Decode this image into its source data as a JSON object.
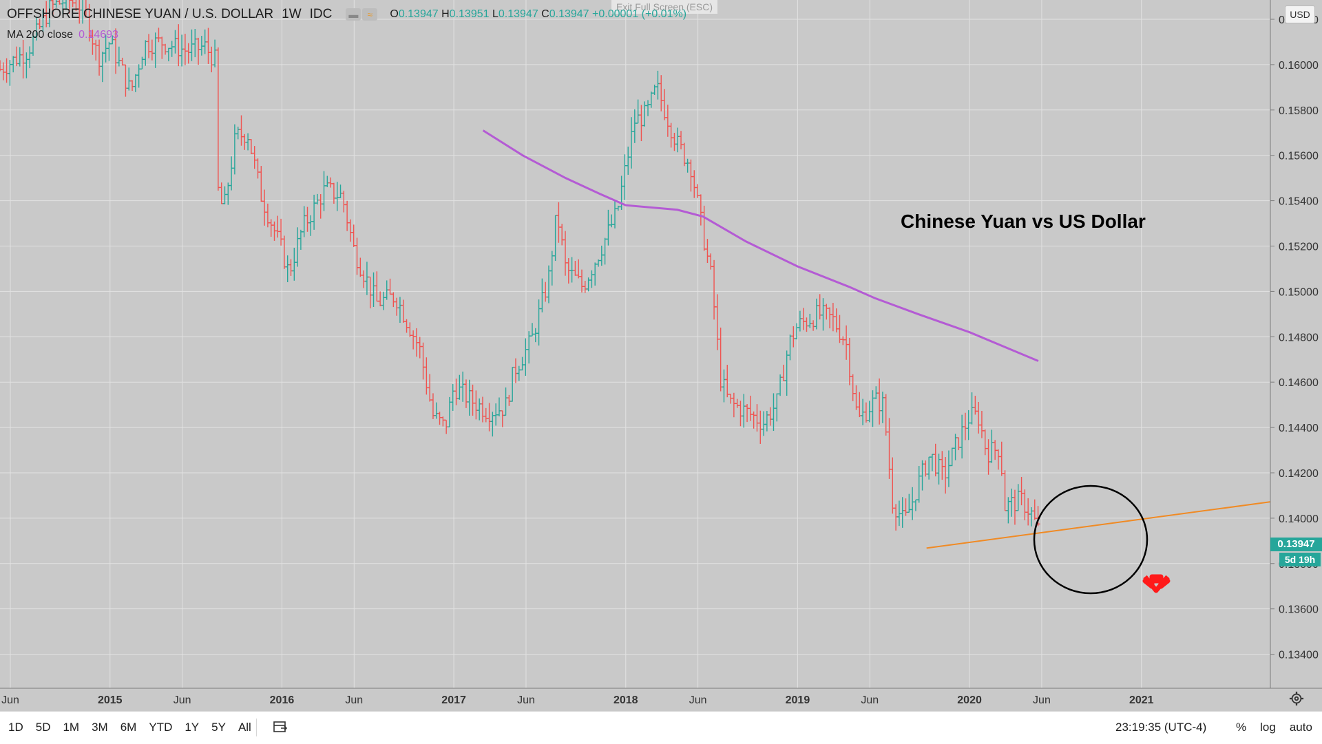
{
  "header": {
    "symbol": "OFFSHORE CHINESE YUAN / U.S. DOLLAR",
    "interval": "1W",
    "source": "IDC",
    "ohlc": {
      "o_label": "O",
      "o": "0.13947",
      "h_label": "H",
      "h": "0.13951",
      "l_label": "L",
      "l": "0.13947",
      "c_label": "C",
      "c": "0.13947",
      "change": "+0.00001 (+0.01%)"
    },
    "ma_label": "MA 200 close",
    "ma_value": "0.14693",
    "exit_fullscreen": "Exit Full Screen (ESC)",
    "currency": "USD"
  },
  "annotation_title": "Chinese Yuan vs US Dollar",
  "price_badge": "0.13947",
  "time_badge": "5d 19h",
  "toolbar": {
    "ranges": [
      "1D",
      "5D",
      "1M",
      "3M",
      "6M",
      "YTD",
      "1Y",
      "5Y",
      "All"
    ],
    "clock": "23:19:35 (UTC-4)",
    "percent": "%",
    "log": "log",
    "auto": "auto"
  },
  "colors": {
    "up": "#26a69a",
    "down": "#ef5350",
    "ma": "#b45bd4",
    "trend": "#f08a24",
    "arrow": "#ff1a1a",
    "grid": "#e2e2e2"
  },
  "chart_data": {
    "type": "line",
    "title": "",
    "xlabel": "",
    "ylabel": "",
    "x_ticks": [
      "Jun",
      "2015",
      "Jun",
      "2016",
      "Jun",
      "2017",
      "Jun",
      "2018",
      "Jun",
      "2019",
      "Jun",
      "2020",
      "Jun",
      "2021"
    ],
    "x_tick_dates": [
      2014.42,
      2015.0,
      2015.42,
      2016.0,
      2016.42,
      2017.0,
      2017.42,
      2018.0,
      2018.42,
      2019.0,
      2019.42,
      2020.0,
      2020.42,
      2021.0
    ],
    "xlim": [
      2014.36,
      2021.75
    ],
    "y_ticks": [
      "0.13400",
      "0.13600",
      "0.13800",
      "0.14000",
      "0.14200",
      "0.14400",
      "0.14600",
      "0.14800",
      "0.15000",
      "0.15200",
      "0.15400",
      "0.15600",
      "0.15800",
      "0.16000",
      "0.16200"
    ],
    "ylim": [
      0.1325,
      0.16285
    ],
    "grid": true,
    "series": [
      {
        "type": "ohlc",
        "x": [
          2014.36,
          2014.52,
          2014.65,
          2014.75,
          2014.85,
          2014.93,
          2015.0,
          2015.12,
          2015.2,
          2015.3,
          2015.45,
          2015.55,
          2015.61,
          2015.62,
          2015.66,
          2015.73,
          2015.8,
          2015.88,
          2016.0,
          2016.04,
          2016.12,
          2016.25,
          2016.35,
          2016.42,
          2016.55,
          2016.66,
          2016.8,
          2016.88,
          2016.95,
          2017.0,
          2017.1,
          2017.2,
          2017.3,
          2017.35,
          2017.45,
          2017.55,
          2017.6,
          2017.65,
          2017.75,
          2017.85,
          2017.95,
          2018.0,
          2018.05,
          2018.12,
          2018.18,
          2018.25,
          2018.3,
          2018.38,
          2018.45,
          2018.5,
          2018.55,
          2018.6,
          2018.7,
          2018.8,
          2018.88,
          2018.95,
          2019.0,
          2019.12,
          2019.2,
          2019.28,
          2019.35,
          2019.45,
          2019.5,
          2019.55,
          2019.62,
          2019.67,
          2019.7,
          2019.77,
          2019.85,
          2019.92,
          2020.0,
          2020.05,
          2020.1,
          2020.18,
          2020.2,
          2020.3,
          2020.36,
          2020.4
        ],
        "values": [
          0.1598,
          0.1606,
          0.1625,
          0.1629,
          0.1625,
          0.1603,
          0.161,
          0.1588,
          0.1609,
          0.161,
          0.1606,
          0.1608,
          0.1602,
          0.1547,
          0.1535,
          0.1568,
          0.157,
          0.1542,
          0.1518,
          0.1508,
          0.1528,
          0.1545,
          0.1542,
          0.1518,
          0.1495,
          0.1498,
          0.1475,
          0.1445,
          0.144,
          0.1458,
          0.1452,
          0.1447,
          0.1449,
          0.1465,
          0.1478,
          0.1505,
          0.1535,
          0.151,
          0.1502,
          0.1518,
          0.1535,
          0.1555,
          0.1575,
          0.1578,
          0.159,
          0.1575,
          0.1565,
          0.1555,
          0.1525,
          0.1505,
          0.1462,
          0.1451,
          0.1447,
          0.1442,
          0.1451,
          0.1477,
          0.1485,
          0.149,
          0.1488,
          0.1478,
          0.1443,
          0.1452,
          0.145,
          0.1408,
          0.1398,
          0.1408,
          0.1415,
          0.1428,
          0.1418,
          0.1432,
          0.1445,
          0.1445,
          0.1429,
          0.1431,
          0.1405,
          0.1408,
          0.1402,
          0.13947
        ]
      },
      {
        "type": "line",
        "x": [
          2017.17,
          2017.4,
          2017.65,
          2017.85,
          2018.0,
          2018.3,
          2018.45,
          2018.7,
          2019.0,
          2019.3,
          2019.45,
          2019.7,
          2020.0,
          2020.4
        ],
        "values": [
          0.1571,
          0.156,
          0.155,
          0.1543,
          0.1538,
          0.1536,
          0.1533,
          0.1522,
          0.1511,
          0.1502,
          0.1497,
          0.149,
          0.1482,
          0.14693
        ]
      },
      {
        "type": "trendline",
        "x": [
          2019.75,
          2021.75
        ],
        "values": [
          0.13868,
          0.14072
        ]
      }
    ],
    "annotations": [
      "circle around 2020 lows",
      "red down arrow"
    ]
  }
}
